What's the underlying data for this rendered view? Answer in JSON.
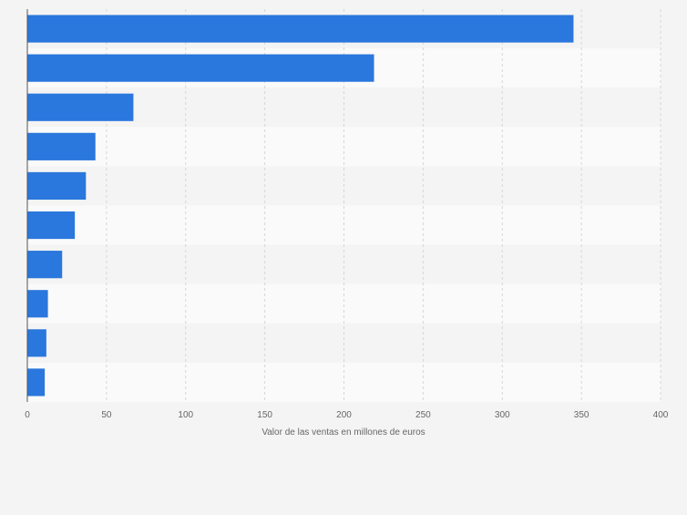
{
  "chart_data": {
    "type": "bar",
    "orientation": "horizontal",
    "categories": [
      "",
      "",
      "",
      "",
      "",
      "",
      "",
      "",
      "",
      ""
    ],
    "values": [
      345,
      219,
      67,
      43,
      37,
      30,
      22,
      13,
      12,
      11
    ],
    "title": "",
    "xlabel": "Valor de las ventas en millones de euros",
    "ylabel": "",
    "xlim": [
      0,
      400
    ],
    "x_ticks": [
      0,
      50,
      100,
      150,
      200,
      250,
      300,
      350,
      400
    ],
    "x_tick_labels": [
      "0",
      "50",
      "100",
      "150",
      "200",
      "250",
      "300",
      "350",
      "400"
    ],
    "grid": "vertical dashed",
    "bar_color": "#2a77dd",
    "background_color": "#f4f4f4",
    "band_colors": [
      "#f4f4f4",
      "#fafafa"
    ]
  }
}
